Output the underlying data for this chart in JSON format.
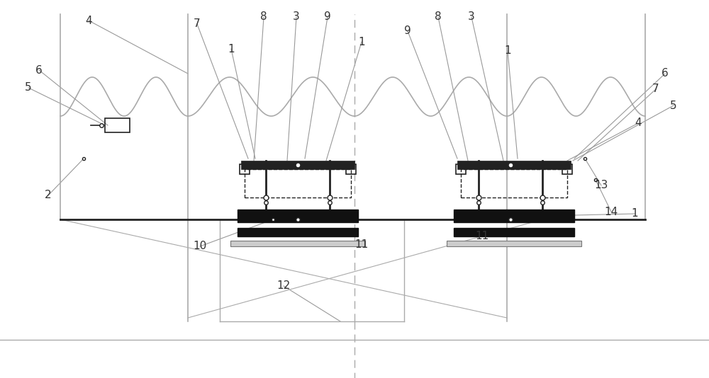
{
  "bg_color": "#ffffff",
  "lc": "#aaaaaa",
  "dc": "#222222",
  "mc": "#555555",
  "fig_width": 10.0,
  "fig_height": 5.34
}
